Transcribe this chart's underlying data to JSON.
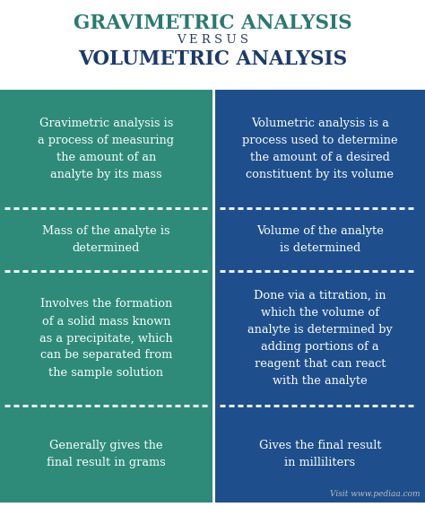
{
  "title1": "GRAVIMETRIC ANALYSIS",
  "versus": "V E R S U S",
  "title2": "VOLUMETRIC ANALYSIS",
  "title1_color": "#2a7a6f",
  "title2_color": "#1a3a6b",
  "versus_color": "#2b3a5c",
  "left_bg": "#2e8b7a",
  "right_bg": "#1e4f8c",
  "text_color": "#ffffff",
  "header_bg": "#ffffff",
  "divider_color": "#ffffff",
  "left_col_texts": [
    "Gravimetric analysis is\na process of measuring\nthe amount of an\nanalyte by its mass",
    "Mass of the analyte is\ndetermined",
    "Involves the formation\nof a solid mass known\nas a precipitate, which\ncan be separated from\nthe sample solution",
    "Generally gives the\nfinal result in grams"
  ],
  "right_col_texts": [
    "Volumetric analysis is a\nprocess used to determine\nthe amount of a desired\nconstituent by its volume",
    "Volume of the analyte\nis determined",
    "Done via a titration, in\nwhich the volume of\nanalyte is determined by\nadding portions of a\nreagent that can react\nwith the analyte",
    "Gives the final result\nin milliliters"
  ],
  "watermark": "Visit www.pediaa.com",
  "fig_width": 4.74,
  "fig_height": 5.65,
  "dpi": 100
}
